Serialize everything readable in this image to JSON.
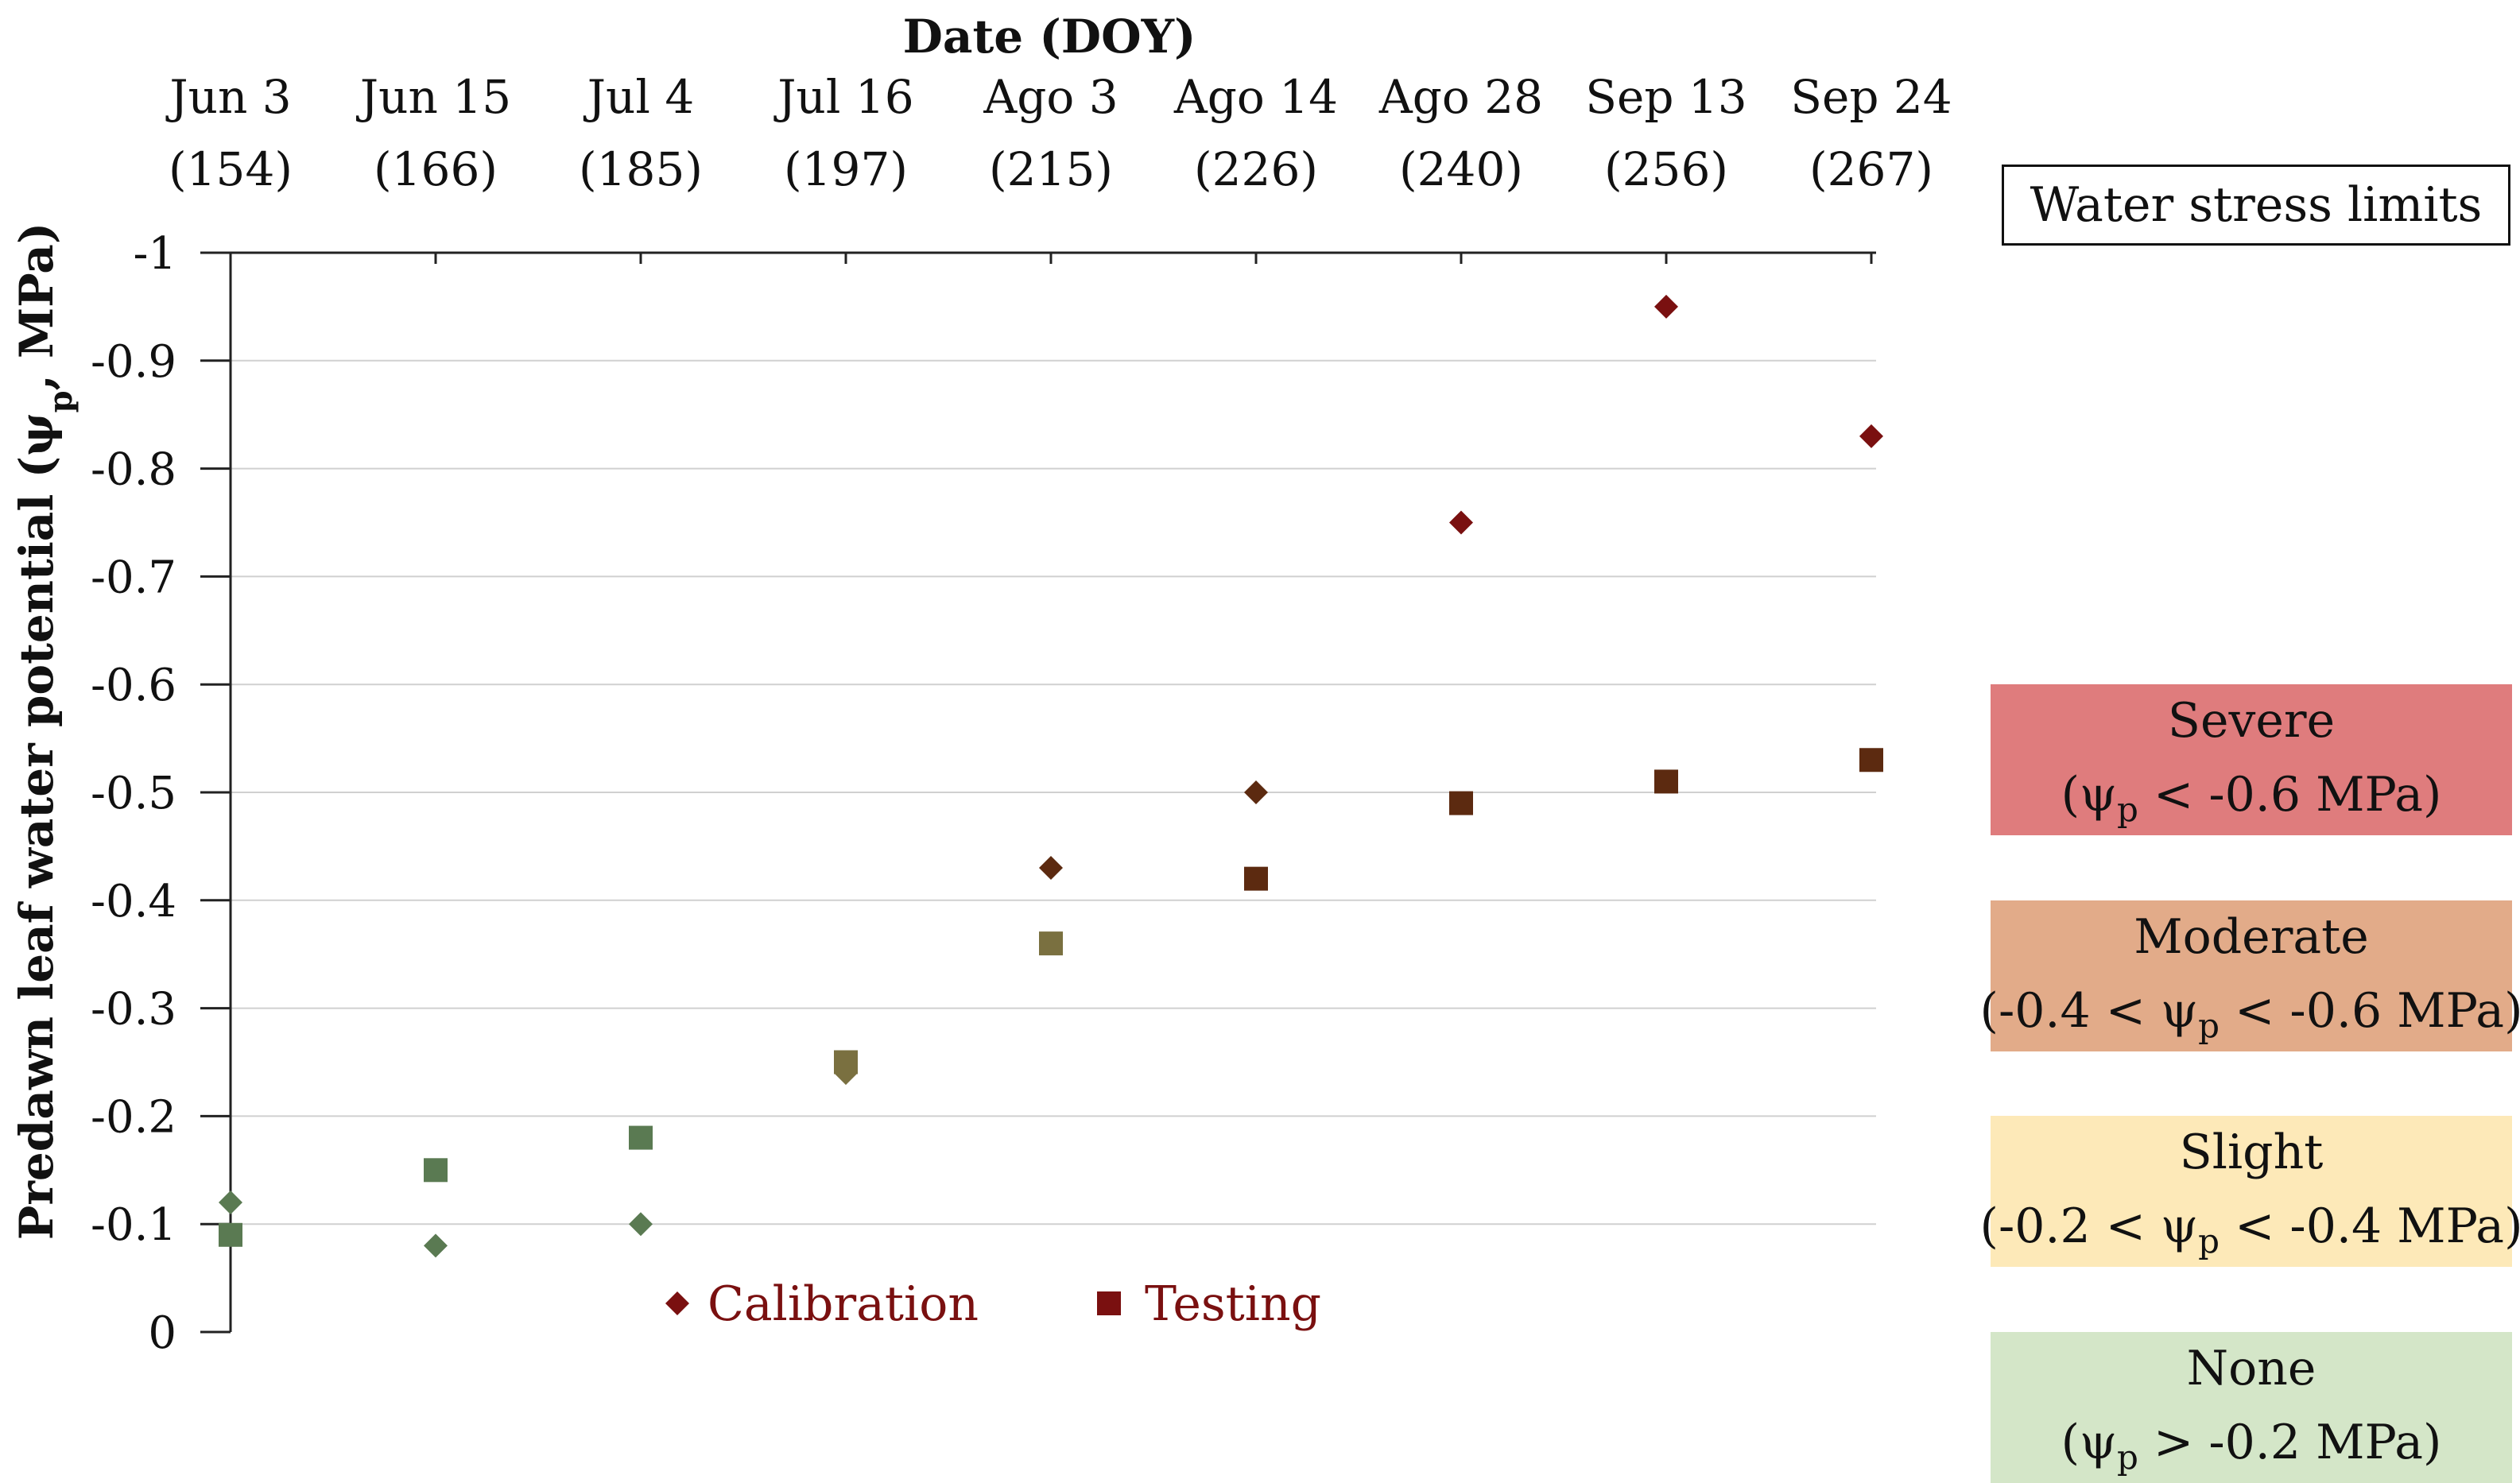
{
  "chart_data": {
    "type": "scatter",
    "title": "Date (DOY)",
    "ylabel_parts": {
      "pre": "Predawn leaf water potential (ψ",
      "sub": "p",
      "post": ", MPa)"
    },
    "ylim": [
      -1,
      0
    ],
    "yticks": [
      0,
      -0.1,
      -0.2,
      -0.3,
      -0.4,
      -0.5,
      -0.6,
      -0.7,
      -0.8,
      -0.9,
      -1
    ],
    "ytick_labels": [
      "0",
      "-0.1",
      "-0.2",
      "-0.3",
      "-0.4",
      "-0.5",
      "-0.6",
      "-0.7",
      "-0.8",
      "-0.9",
      "-1"
    ],
    "x_axis_position": "top",
    "categories": [
      {
        "date": "Jun 3",
        "doy": "(154)"
      },
      {
        "date": "Jun 15",
        "doy": "(166)"
      },
      {
        "date": "Jul 4",
        "doy": "(185)"
      },
      {
        "date": "Jul 16",
        "doy": "(197)"
      },
      {
        "date": "Ago 3",
        "doy": "(215)"
      },
      {
        "date": "Ago 14",
        "doy": "(226)"
      },
      {
        "date": "Ago 28",
        "doy": "(240)"
      },
      {
        "date": "Sep 13",
        "doy": "(256)"
      },
      {
        "date": "Sep 24",
        "doy": "(267)"
      }
    ],
    "series": [
      {
        "name": "Calibration",
        "marker": "diamond",
        "values": [
          -0.12,
          -0.08,
          -0.1,
          -0.24,
          -0.43,
          -0.5,
          -0.75,
          -0.95,
          -0.83
        ]
      },
      {
        "name": "Testing",
        "marker": "square",
        "values": [
          -0.09,
          -0.15,
          -0.18,
          -0.25,
          -0.36,
          -0.42,
          -0.49,
          -0.51,
          -0.53
        ]
      }
    ],
    "bands": [
      {
        "from": 0,
        "to": -0.2,
        "color": "#d4e6c8",
        "marker_color": "#5a7a52"
      },
      {
        "from": -0.2,
        "to": -0.4,
        "color": "#fde9b8",
        "marker_color": "#7a7040"
      },
      {
        "from": -0.4,
        "to": -0.6,
        "color": "#e2ab89",
        "marker_color": "#5c2a10"
      },
      {
        "from": -0.6,
        "to": -1,
        "color": "#df7c7d",
        "marker_color": "#7a1010"
      }
    ],
    "legend_position": "bottom-center",
    "grid": true
  },
  "stress_limits": {
    "title": "Water stress limits",
    "levels": [
      {
        "name": "None",
        "pre": "(ψ",
        "sub": "p",
        "post": " > -0.2 MPa)",
        "color": "#d4e6c8"
      },
      {
        "name": "Slight",
        "pre": "(-0.2 < ψ",
        "sub": "p",
        "post": " < -0.4 MPa)",
        "color": "#fde9b8"
      },
      {
        "name": "Moderate",
        "pre": "(-0.4 < ψ",
        "sub": "p",
        "post": " < -0.6 MPa)",
        "color": "#e2ab89"
      },
      {
        "name": "Severe",
        "pre": "(ψ",
        "sub": "p",
        "post": " < -0.6 MPa)",
        "color": "#df7c7d"
      }
    ]
  }
}
